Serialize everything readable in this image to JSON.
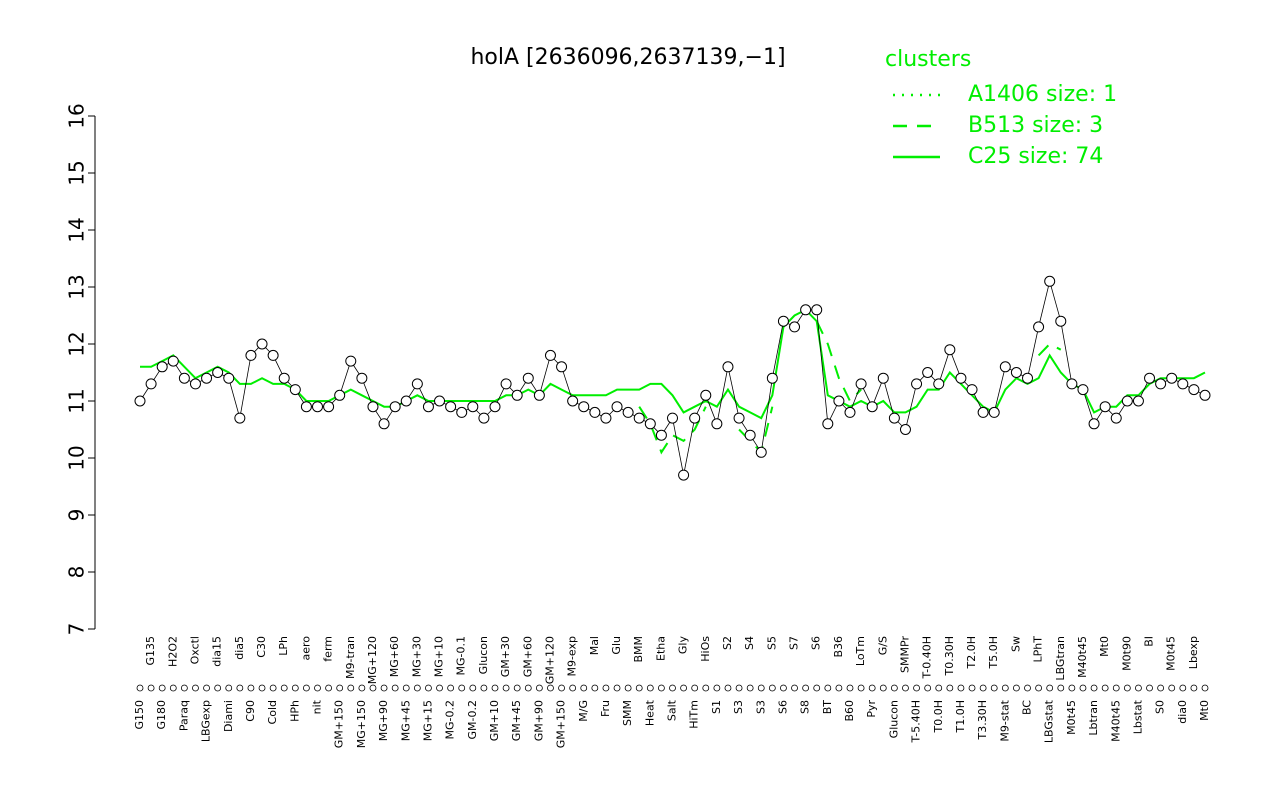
{
  "chart_data": {
    "type": "line",
    "title": "holA [2636096,2637139,−1]",
    "legend_title": "clusters",
    "legend": "top-right",
    "categories": [
      "G150",
      "G135",
      "G180",
      "H2O2",
      "Paraq",
      "Oxctl",
      "LBGexp",
      "dia15",
      "Diami",
      "dia5",
      "C90",
      "C30",
      "Cold",
      "LPh",
      "HPh",
      "aero",
      "nit",
      "ferm",
      "GM+150",
      "M9-tran",
      "MG+150",
      "MG+120",
      "MG+90",
      "MG+60",
      "MG+45",
      "MG+30",
      "MG+15",
      "MG+10",
      "MG-0.2",
      "MG-0.1",
      "GM-0.2",
      "Glucon",
      "GM+10",
      "GM+30",
      "GM+45",
      "GM+60",
      "GM+90",
      "GM+120",
      "GM+150",
      "M9-exp",
      "M/G",
      "Mal",
      "Fru",
      "Glu",
      "SMM",
      "BMM",
      "Heat",
      "Etha",
      "Salt",
      "Gly",
      "HiTm",
      "HiOs",
      "S1",
      "S2",
      "S3",
      "S4",
      "S3",
      "S5",
      "S6",
      "S7",
      "S8",
      "S6",
      "BT",
      "B36",
      "B60",
      "LoTm",
      "Pyr",
      "G/S",
      "Glucon",
      "SMMPr",
      "T-5.40H",
      "T-0.40H",
      "T0.0H",
      "T0.30H",
      "T1.0H",
      "T2.0H",
      "T3.30H",
      "T5.0H",
      "M9-stat",
      "Sw",
      "BC",
      "LPhT",
      "LBGstat",
      "LBGtran",
      "M0t45",
      "M40t45",
      "Lbtran",
      "Mt0",
      "M40t45",
      "M0t90",
      "Lbstat",
      "BI",
      "S0",
      "M0t45",
      "dia0",
      "Lbexp",
      "Mt0"
    ],
    "values": [
      11.0,
      11.3,
      11.6,
      11.7,
      11.4,
      11.3,
      11.4,
      11.5,
      11.4,
      10.7,
      11.8,
      12.0,
      11.8,
      11.4,
      11.2,
      10.9,
      10.9,
      10.9,
      11.1,
      11.7,
      11.4,
      10.9,
      10.6,
      10.9,
      11.0,
      11.3,
      10.9,
      11.0,
      10.9,
      10.8,
      10.9,
      10.7,
      10.9,
      11.3,
      11.1,
      11.4,
      11.1,
      11.8,
      11.6,
      11.0,
      10.9,
      10.8,
      10.7,
      10.9,
      10.8,
      10.7,
      10.6,
      10.4,
      10.7,
      9.7,
      10.7,
      11.1,
      10.6,
      11.6,
      10.7,
      10.4,
      10.1,
      11.4,
      12.4,
      12.3,
      12.6,
      12.6,
      10.6,
      11.0,
      10.8,
      11.3,
      10.9,
      11.4,
      10.7,
      10.5,
      11.3,
      11.5,
      11.3,
      11.9,
      11.4,
      11.2,
      10.8,
      10.8,
      11.6,
      11.5,
      11.4,
      12.3,
      13.1,
      12.4,
      11.3,
      11.2,
      10.6,
      10.9,
      10.7,
      11.0,
      11.0,
      11.4,
      11.3,
      11.4,
      11.3,
      11.2,
      11.1
    ],
    "point_color": "#000000",
    "series": [
      {
        "name": "A1406 size: 1",
        "color": "#00ee00",
        "linestyle": "dotted",
        "values": [
          null,
          null,
          null,
          null,
          null,
          null,
          null,
          null,
          null,
          null,
          null,
          null,
          null,
          null,
          null,
          null,
          null,
          null,
          null,
          null,
          null,
          null,
          null,
          null,
          null,
          null,
          null,
          null,
          null,
          null,
          null,
          null,
          null,
          null,
          null,
          null,
          null,
          null,
          null,
          null,
          null,
          null,
          null,
          null,
          null,
          null,
          null,
          null,
          null,
          null,
          null,
          null,
          null,
          null,
          null,
          null,
          null,
          null,
          null,
          null,
          null,
          null,
          null,
          null,
          null,
          null,
          null,
          null,
          null,
          null,
          null,
          null,
          null,
          null,
          null,
          null,
          null,
          null,
          null,
          null,
          null,
          null,
          null,
          null,
          null,
          null,
          null,
          null,
          null,
          null,
          null,
          null,
          null,
          null,
          null,
          null,
          null
        ]
      },
      {
        "name": "B513 size: 3",
        "color": "#00ee00",
        "linestyle": "dashed",
        "values": [
          null,
          null,
          null,
          null,
          null,
          null,
          null,
          null,
          null,
          null,
          null,
          null,
          null,
          null,
          null,
          null,
          null,
          null,
          null,
          null,
          null,
          null,
          null,
          null,
          null,
          null,
          null,
          null,
          null,
          null,
          null,
          null,
          null,
          null,
          null,
          null,
          null,
          null,
          null,
          null,
          null,
          null,
          null,
          null,
          null,
          10.9,
          10.6,
          10.1,
          10.4,
          10.3,
          10.5,
          10.9,
          null,
          null,
          10.5,
          10.3,
          10.1,
          10.9,
          null,
          null,
          null,
          12.4,
          12.0,
          11.4,
          11.0,
          11.2,
          null,
          null,
          null,
          null,
          null,
          null,
          null,
          null,
          null,
          null,
          null,
          null,
          null,
          null,
          null,
          11.8,
          12.0,
          11.9,
          null,
          null,
          null,
          null,
          null,
          null,
          null,
          null,
          null,
          null,
          null,
          null,
          null
        ]
      },
      {
        "name": "C25 size: 74",
        "color": "#00ee00",
        "linestyle": "solid",
        "values": [
          11.6,
          11.6,
          11.7,
          11.8,
          11.6,
          11.4,
          11.5,
          11.6,
          11.5,
          11.3,
          11.3,
          11.4,
          11.3,
          11.3,
          11.2,
          11.0,
          11.0,
          11.0,
          11.1,
          11.2,
          11.1,
          11.0,
          10.9,
          10.9,
          11.0,
          11.1,
          11.0,
          11.0,
          11.0,
          11.0,
          11.0,
          11.0,
          11.0,
          11.1,
          11.1,
          11.2,
          11.1,
          11.3,
          11.2,
          11.1,
          11.1,
          11.1,
          11.1,
          11.2,
          11.2,
          11.2,
          11.3,
          11.3,
          11.1,
          10.8,
          10.9,
          11.0,
          10.9,
          11.2,
          10.9,
          10.8,
          10.7,
          11.1,
          12.3,
          12.5,
          12.6,
          12.4,
          11.1,
          11.0,
          10.9,
          11.0,
          10.9,
          11.0,
          10.8,
          10.8,
          10.9,
          11.2,
          11.2,
          11.5,
          11.3,
          11.1,
          10.9,
          10.8,
          11.2,
          11.4,
          11.3,
          11.4,
          11.8,
          11.5,
          11.3,
          11.2,
          10.8,
          10.9,
          10.9,
          11.1,
          11.1,
          11.3,
          11.4,
          11.4,
          11.4,
          11.4,
          11.5
        ]
      }
    ],
    "ylim": [
      7,
      16
    ],
    "yticks": [
      7,
      8,
      9,
      10,
      11,
      12,
      13,
      14,
      15,
      16
    ]
  }
}
